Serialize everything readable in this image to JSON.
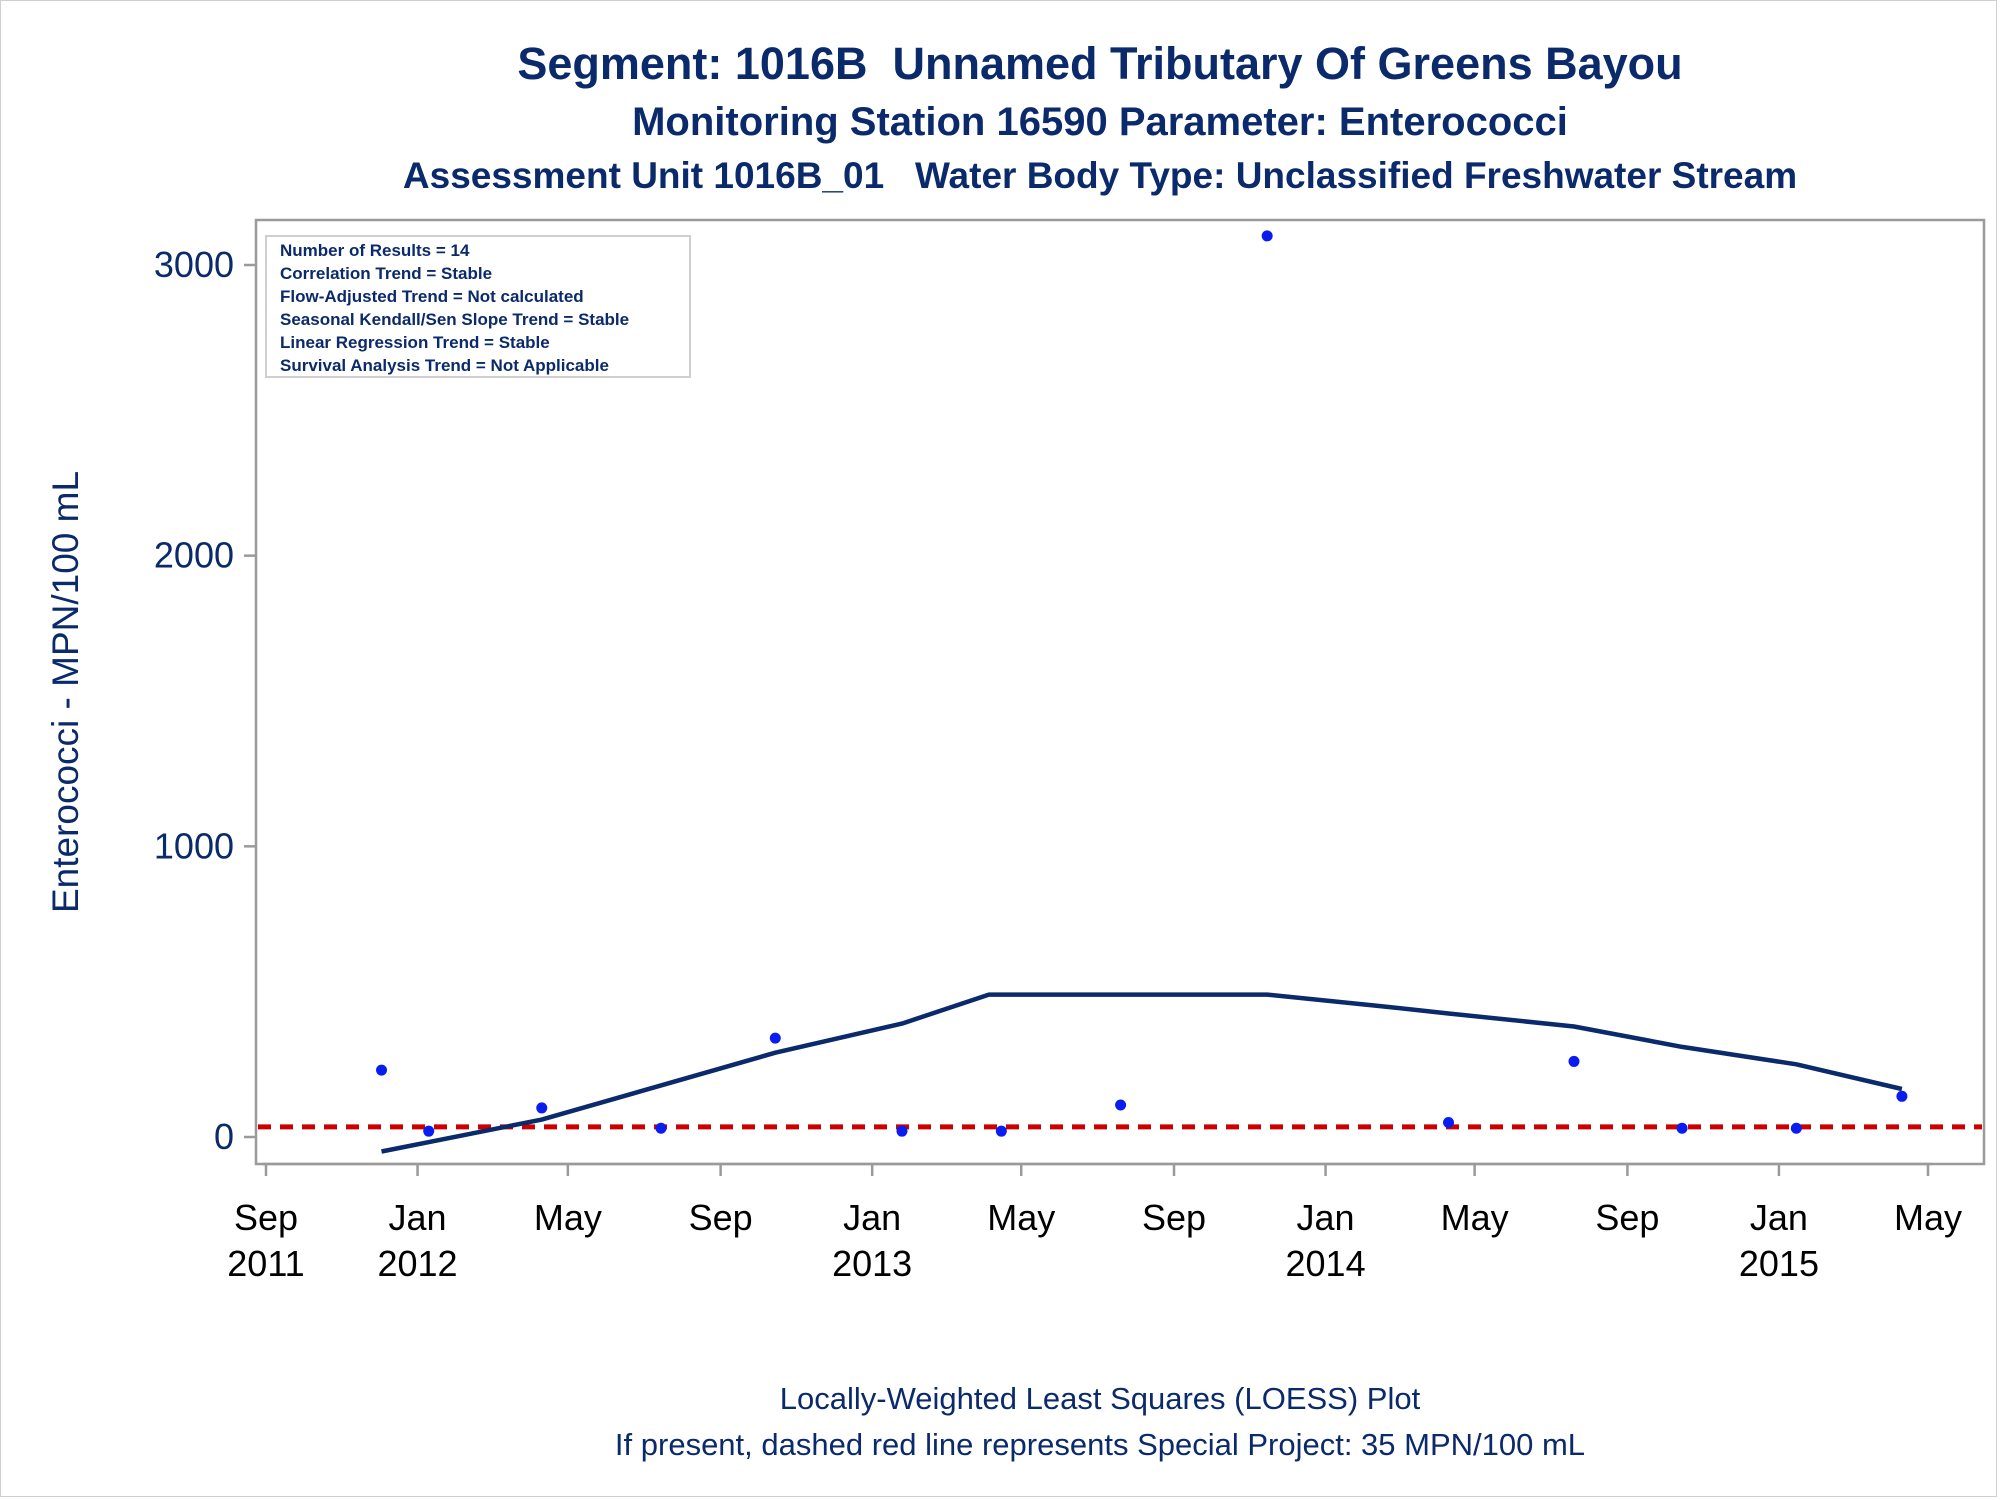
{
  "title_lines": [
    "Segment: 1016B  Unnamed Tributary Of Greens Bayou",
    "Monitoring Station 16590 Parameter: Enterococci",
    "Assessment Unit 1016B_01   Water Body Type: Unclassified Freshwater Stream"
  ],
  "footer_lines": [
    "Locally-Weighted Least Squares (LOESS) Plot",
    "If present, dashed red line represents Special Project: 35 MPN/100 mL"
  ],
  "stats_box": [
    "Number of Results = 14",
    "Correlation Trend = Stable",
    "Flow-Adjusted Trend = Not calculated",
    "Seasonal Kendall/Sen Slope Trend = Stable",
    "Linear Regression Trend = Stable",
    "Survival Analysis Trend = Not Applicable"
  ],
  "colors": {
    "text": "#0b2a6b",
    "points": "#0a1df0",
    "loess": "#0b2a6b",
    "reference": "#cc0000",
    "frame": "#9a9a9a"
  },
  "chart_data": {
    "type": "scatter",
    "title": "Segment: 1016B  Unnamed Tributary Of Greens Bayou",
    "ylabel": "Enterococci - MPN/100 mL",
    "xlabel": "",
    "ylim": [
      -90,
      3150
    ],
    "xlim": [
      "2011-09-01",
      "2015-05-01"
    ],
    "yticks": [
      0,
      1000,
      2000,
      3000
    ],
    "xticks": [
      {
        "date": "2011-09-01",
        "label": [
          "Sep",
          "2011"
        ]
      },
      {
        "date": "2012-01-01",
        "label": [
          "Jan",
          "2012"
        ]
      },
      {
        "date": "2012-05-01",
        "label": [
          "May",
          ""
        ]
      },
      {
        "date": "2012-09-01",
        "label": [
          "Sep",
          ""
        ]
      },
      {
        "date": "2013-01-01",
        "label": [
          "Jan",
          "2013"
        ]
      },
      {
        "date": "2013-05-01",
        "label": [
          "May",
          ""
        ]
      },
      {
        "date": "2013-09-01",
        "label": [
          "Sep",
          ""
        ]
      },
      {
        "date": "2014-01-01",
        "label": [
          "Jan",
          "2014"
        ]
      },
      {
        "date": "2014-05-01",
        "label": [
          "May",
          ""
        ]
      },
      {
        "date": "2014-09-01",
        "label": [
          "Sep",
          ""
        ]
      },
      {
        "date": "2015-01-01",
        "label": [
          "Jan",
          "2015"
        ]
      },
      {
        "date": "2015-05-01",
        "label": [
          "May",
          ""
        ]
      }
    ],
    "series": [
      {
        "kind": "points",
        "points": [
          {
            "x": "2011-12-03",
            "y": 230
          },
          {
            "x": "2012-01-10",
            "y": 20
          },
          {
            "x": "2012-04-10",
            "y": 100
          },
          {
            "x": "2012-07-15",
            "y": 30
          },
          {
            "x": "2012-10-15",
            "y": 340
          },
          {
            "x": "2013-01-25",
            "y": 20
          },
          {
            "x": "2013-04-15",
            "y": 20
          },
          {
            "x": "2013-07-20",
            "y": 110
          },
          {
            "x": "2013-11-15",
            "y": 3100
          },
          {
            "x": "2014-04-10",
            "y": 50
          },
          {
            "x": "2014-07-20",
            "y": 260
          },
          {
            "x": "2014-10-15",
            "y": 30
          },
          {
            "x": "2015-01-15",
            "y": 30
          },
          {
            "x": "2015-04-10",
            "y": 140
          }
        ]
      },
      {
        "kind": "loess",
        "points": [
          {
            "x": "2011-12-03",
            "y": -50
          },
          {
            "x": "2012-04-10",
            "y": 60
          },
          {
            "x": "2012-10-15",
            "y": 290
          },
          {
            "x": "2013-01-25",
            "y": 390
          },
          {
            "x": "2013-04-05",
            "y": 490
          },
          {
            "x": "2013-11-15",
            "y": 490
          },
          {
            "x": "2014-02-15",
            "y": 450
          },
          {
            "x": "2014-04-10",
            "y": 425
          },
          {
            "x": "2014-07-20",
            "y": 380
          },
          {
            "x": "2014-10-15",
            "y": 310
          },
          {
            "x": "2015-01-15",
            "y": 250
          },
          {
            "x": "2015-04-10",
            "y": 165
          }
        ]
      }
    ],
    "reference_line": {
      "y": 35,
      "label": "Special Project: 35 MPN/100 mL"
    },
    "grid": false,
    "legend": "top-left"
  }
}
